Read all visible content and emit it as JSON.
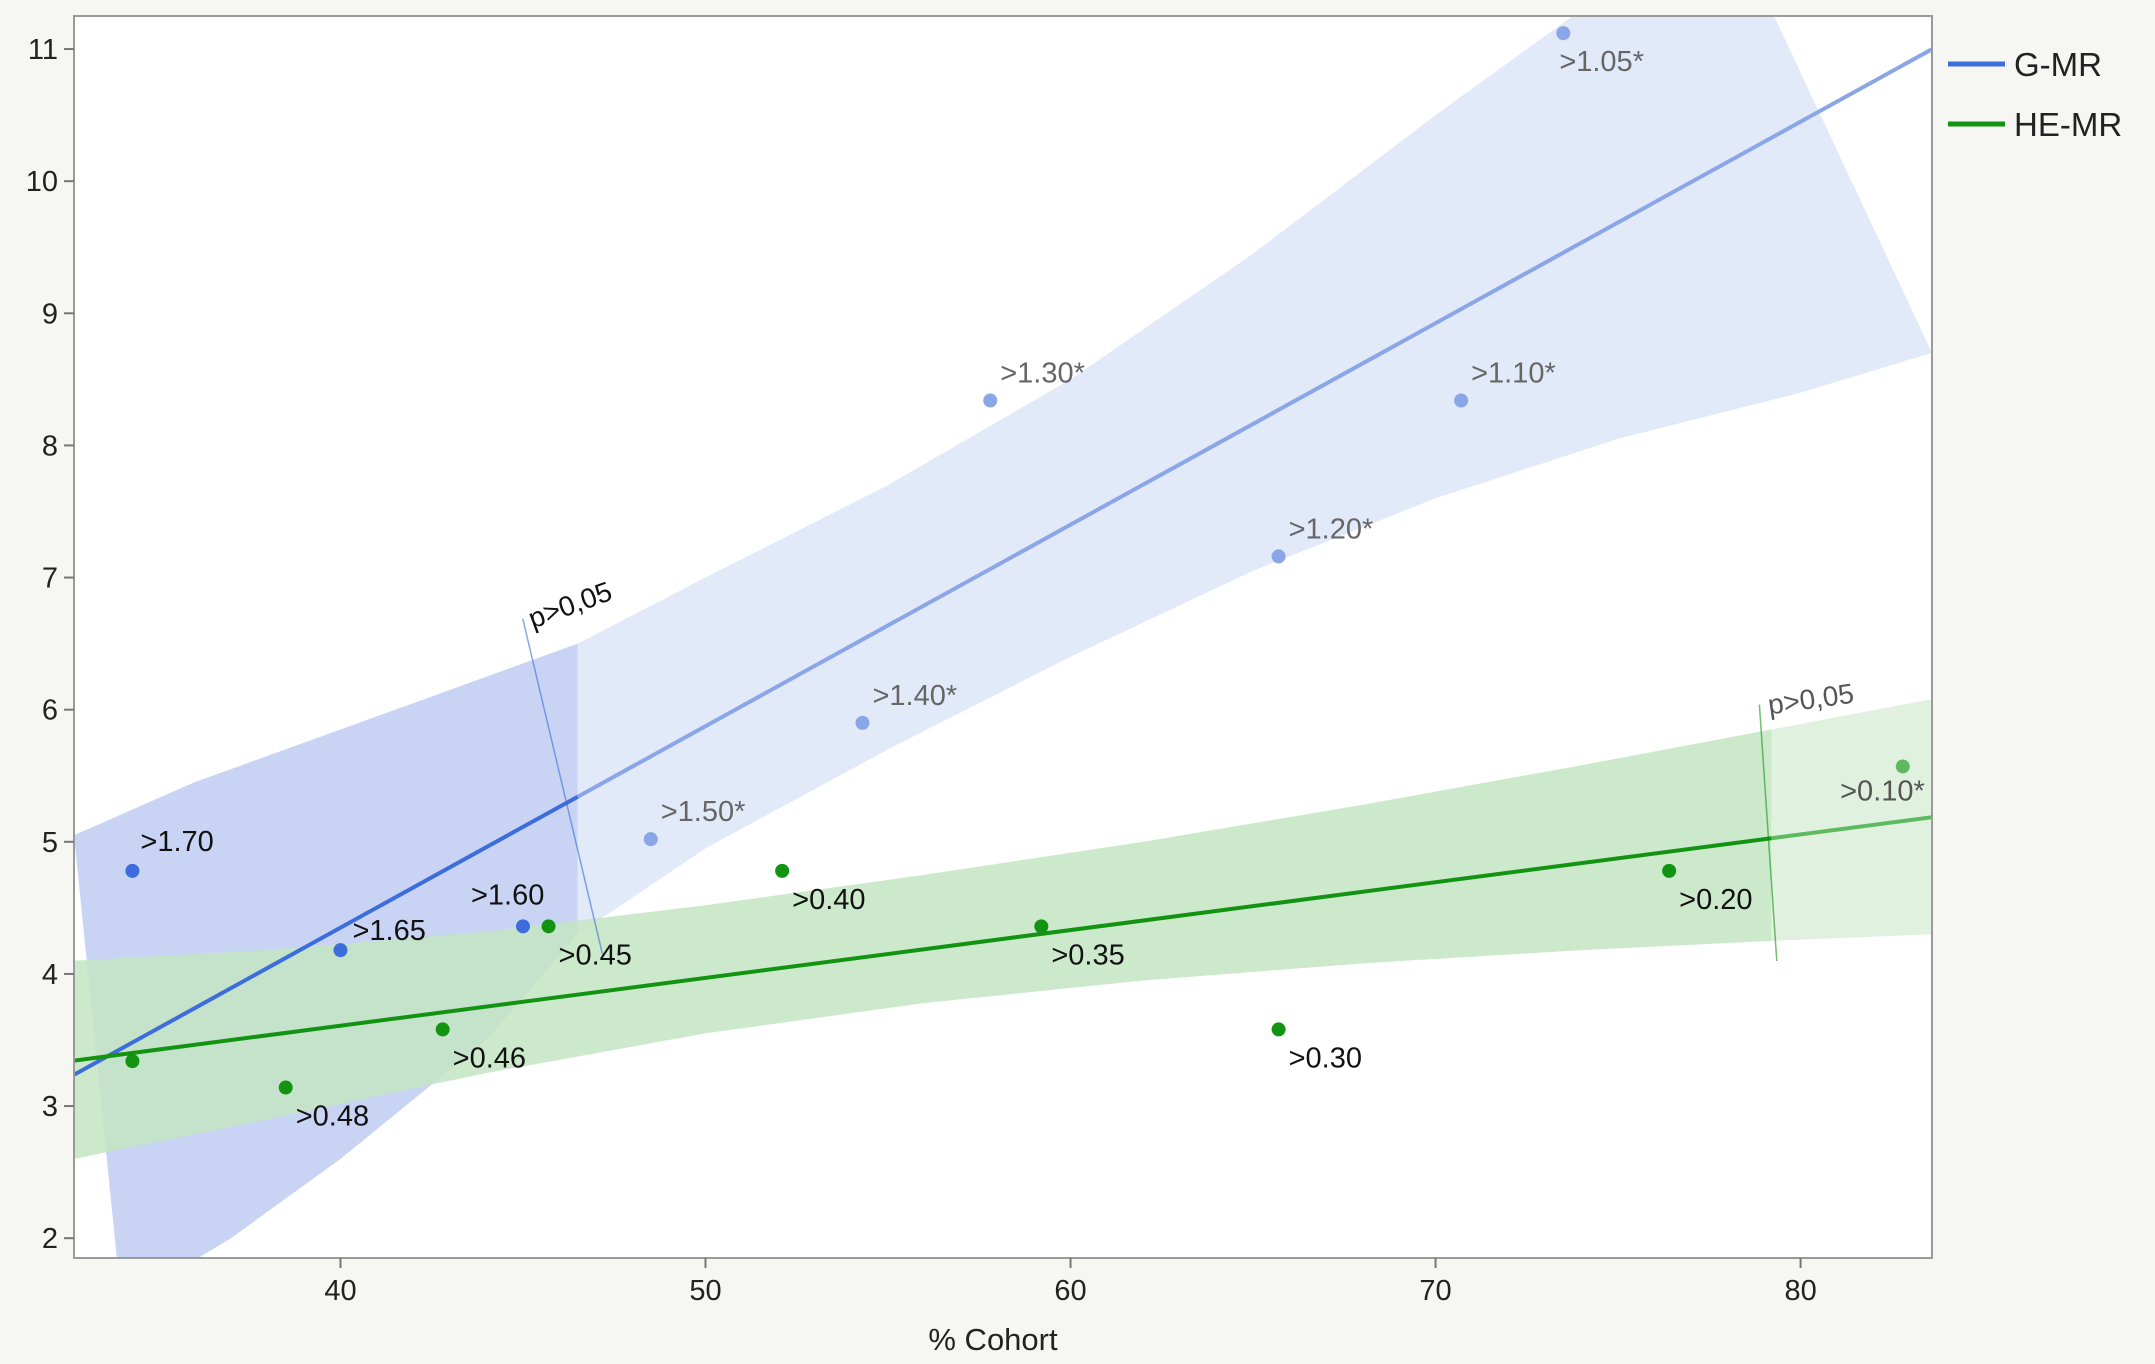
{
  "chart_data": {
    "type": "scatter",
    "title": "",
    "xlabel": "% Cohort",
    "ylabel": "",
    "xlim": [
      32.7,
      83.6
    ],
    "ylim": [
      1.85,
      11.25
    ],
    "x_ticks": [
      40,
      50,
      60,
      70,
      80
    ],
    "y_ticks": [
      2,
      3,
      4,
      5,
      6,
      7,
      8,
      9,
      10,
      11
    ],
    "grid": false,
    "legend_position": "right",
    "series": [
      {
        "name": "G-MR",
        "color": "#3d6ddb",
        "light_color": "#8aa6e6",
        "band_color": "#c3cff3",
        "band_light_color": "#e0e8f8",
        "significance_x": 46.5,
        "significance_label": "p>0,05",
        "fit": {
          "slope": 0.1525,
          "intercept": -1.75
        },
        "band_upper": [
          [
            32.7,
            5.05
          ],
          [
            36,
            5.45
          ],
          [
            40,
            5.85
          ],
          [
            44,
            6.25
          ],
          [
            46.5,
            6.5
          ],
          [
            50,
            7.0
          ],
          [
            55,
            7.7
          ],
          [
            60,
            8.5
          ],
          [
            65,
            9.45
          ],
          [
            70,
            10.5
          ],
          [
            75,
            11.5
          ],
          [
            78,
            12.0
          ]
        ],
        "band_lower": [
          [
            34,
            1.5
          ],
          [
            37,
            2.0
          ],
          [
            40,
            2.6
          ],
          [
            44,
            3.5
          ],
          [
            46.5,
            4.3
          ],
          [
            50,
            4.95
          ],
          [
            55,
            5.7
          ],
          [
            60,
            6.4
          ],
          [
            65,
            7.05
          ],
          [
            70,
            7.6
          ],
          [
            75,
            8.05
          ],
          [
            80,
            8.4
          ],
          [
            83.6,
            8.7
          ]
        ],
        "points": [
          {
            "x": 34.3,
            "y": 4.78,
            "label": ">1.70"
          },
          {
            "x": 40.0,
            "y": 4.18,
            "label": ">1.65"
          },
          {
            "x": 45.0,
            "y": 4.36,
            "label": ">1.60"
          },
          {
            "x": 48.5,
            "y": 5.02,
            "label": ">1.50*"
          },
          {
            "x": 54.3,
            "y": 5.9,
            "label": ">1.40*"
          },
          {
            "x": 57.8,
            "y": 8.34,
            "label": ">1.30*"
          },
          {
            "x": 65.7,
            "y": 7.16,
            "label": ">1.20*"
          },
          {
            "x": 70.7,
            "y": 8.34,
            "label": ">1.10*"
          },
          {
            "x": 73.5,
            "y": 11.12,
            "label": ">1.05*"
          }
        ]
      },
      {
        "name": "HE-MR",
        "color": "#129412",
        "light_color": "#5fba5f",
        "band_color": "#c4e5c2",
        "band_light_color": "#dcefda",
        "significance_x": 79.2,
        "significance_label": "p>0,05",
        "fit": {
          "slope": 0.0362,
          "intercept": 2.16
        },
        "band_upper": [
          [
            32.7,
            4.1
          ],
          [
            38,
            4.18
          ],
          [
            44,
            4.32
          ],
          [
            50,
            4.52
          ],
          [
            56,
            4.75
          ],
          [
            62,
            5.0
          ],
          [
            68,
            5.28
          ],
          [
            74,
            5.58
          ],
          [
            79.2,
            5.85
          ],
          [
            83.6,
            6.08
          ]
        ],
        "band_lower": [
          [
            32.7,
            2.6
          ],
          [
            38,
            2.9
          ],
          [
            44,
            3.25
          ],
          [
            50,
            3.55
          ],
          [
            56,
            3.78
          ],
          [
            62,
            3.95
          ],
          [
            68,
            4.08
          ],
          [
            74,
            4.18
          ],
          [
            79.2,
            4.25
          ],
          [
            83.6,
            4.3
          ]
        ],
        "points": [
          {
            "x": 34.3,
            "y": 3.34,
            "label": ""
          },
          {
            "x": 38.5,
            "y": 3.14,
            "label": ">0.48"
          },
          {
            "x": 42.8,
            "y": 3.58,
            "label": ">0.46"
          },
          {
            "x": 45.7,
            "y": 4.36,
            "label": ">0.45"
          },
          {
            "x": 52.1,
            "y": 4.78,
            "label": ">0.40"
          },
          {
            "x": 59.2,
            "y": 4.36,
            "label": ">0.35"
          },
          {
            "x": 65.7,
            "y": 3.58,
            "label": ">0.30"
          },
          {
            "x": 76.4,
            "y": 4.78,
            "label": ">0.20"
          },
          {
            "x": 82.8,
            "y": 5.57,
            "label": ">0.10*"
          }
        ]
      }
    ]
  }
}
